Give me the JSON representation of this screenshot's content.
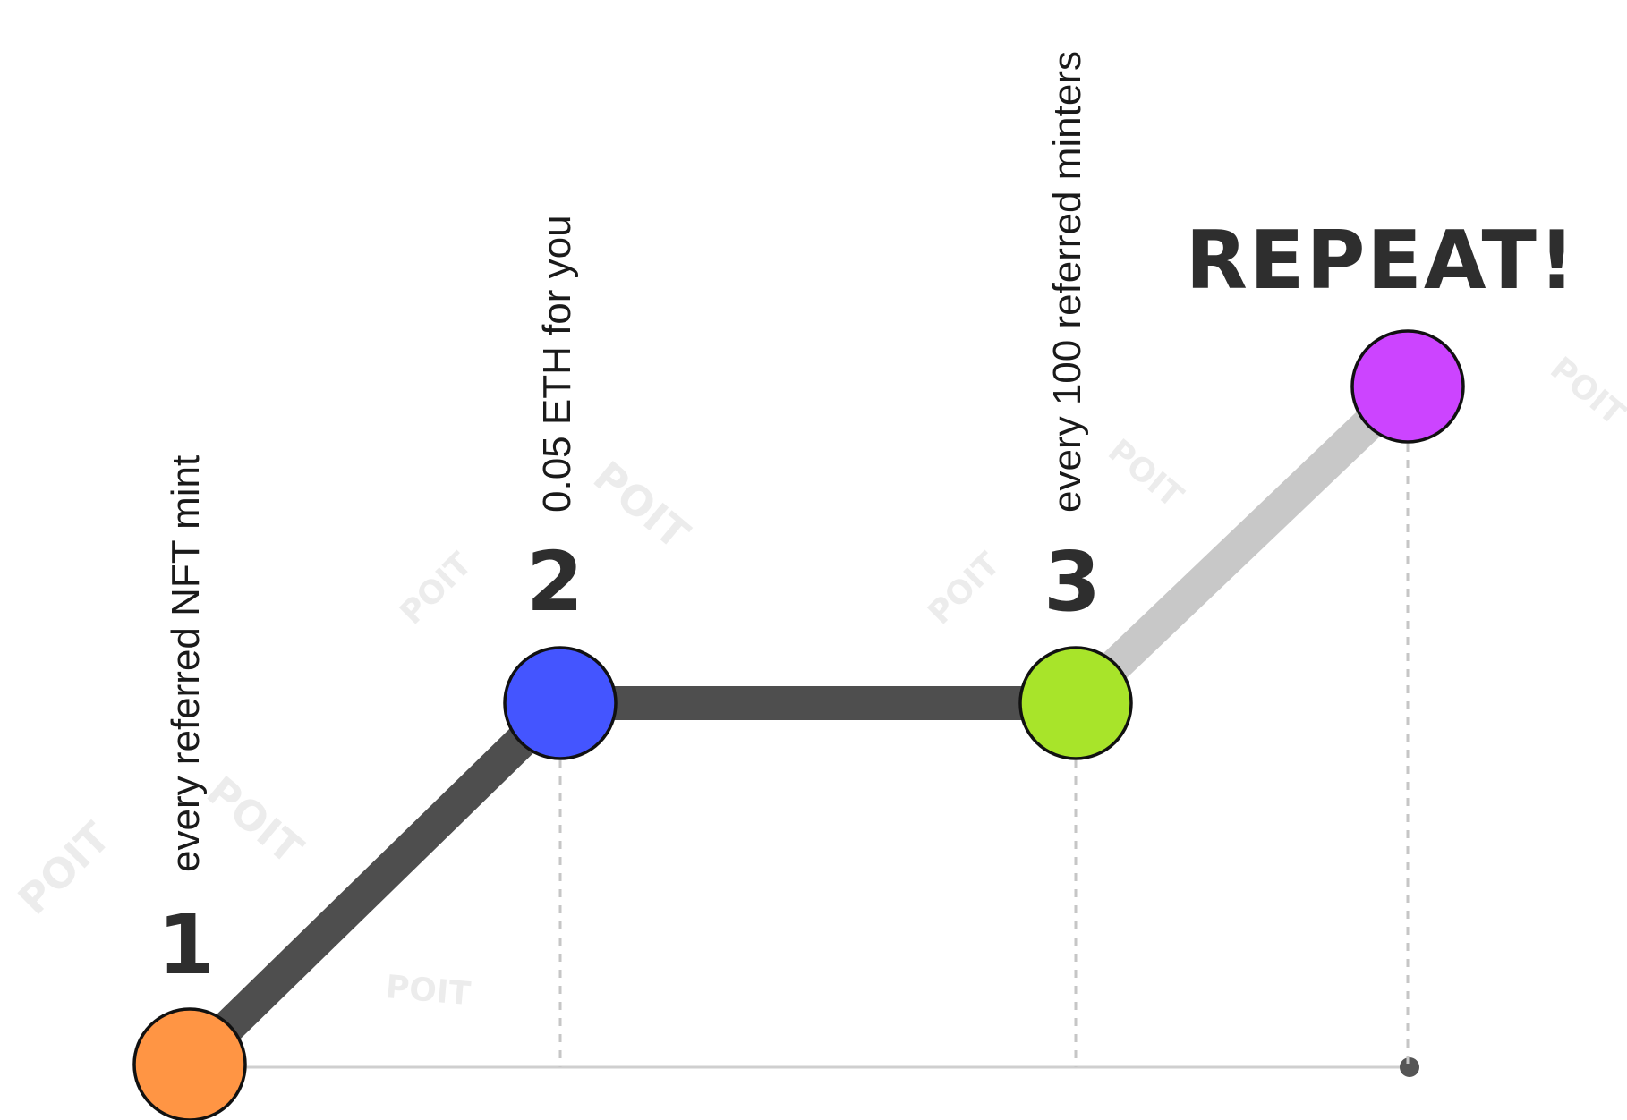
{
  "colors": {
    "background": "#ffffff",
    "path_dark": "#4e4e4e",
    "path_light": "#c8c8c8",
    "baseline": "#cfcfcf",
    "dashed": "#c6c6c6",
    "node_outline": "#111111",
    "text_dark": "#2e2e2e"
  },
  "steps": [
    {
      "number": "1",
      "caption": "every referred NFT mint",
      "color": "#ff9544"
    },
    {
      "number": "2",
      "caption": "0.05 ETH for you",
      "color": "#4455ff"
    },
    {
      "number": "3",
      "caption": "every 100  referred minters",
      "color": "#a8e42a"
    }
  ],
  "final": {
    "label": "REPEAT!",
    "color": "#cc44ff"
  },
  "watermark": {
    "text": "POIT"
  }
}
